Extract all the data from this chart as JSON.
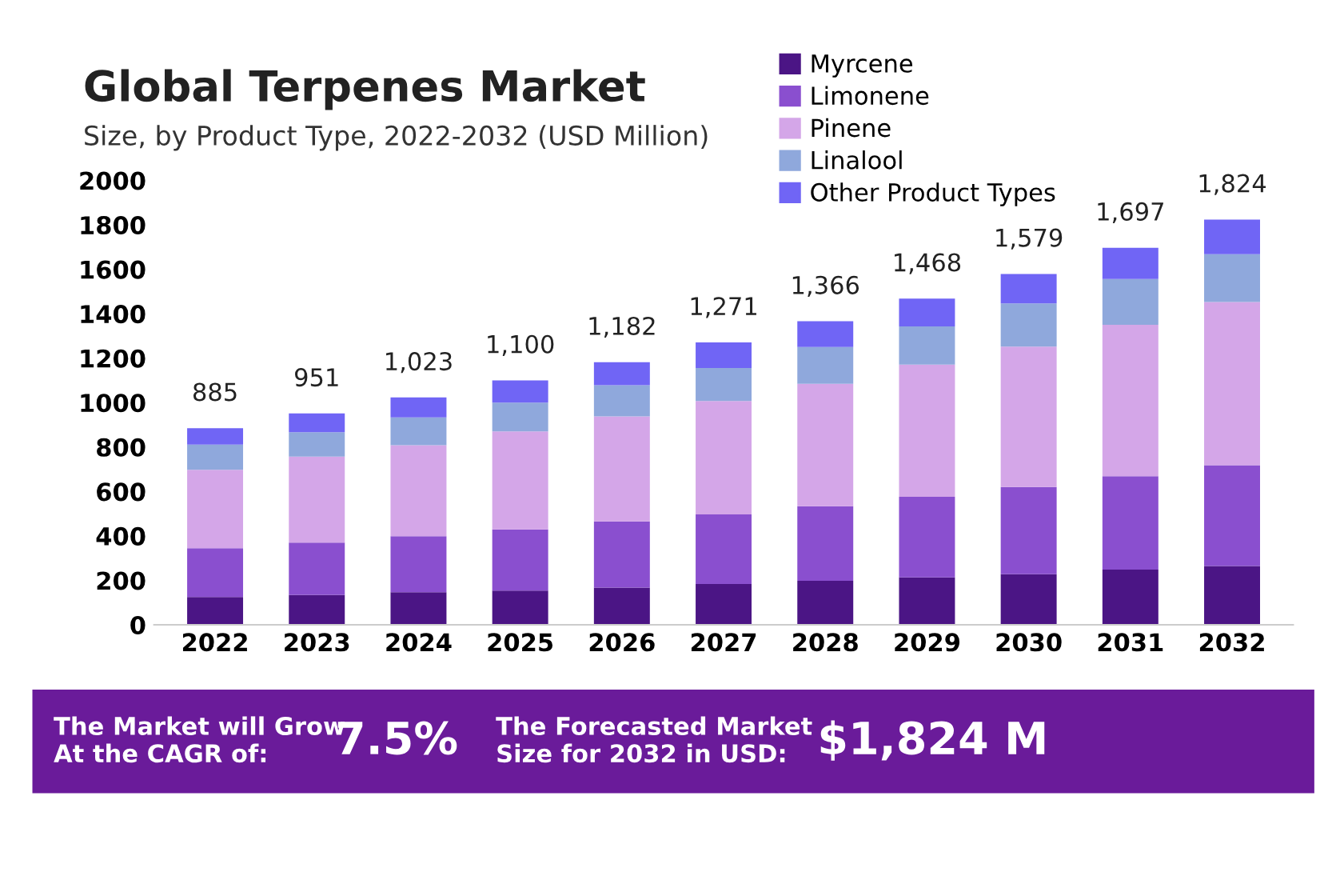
{
  "chart_data": {
    "type": "bar",
    "stacked": true,
    "title": "Global Terpenes Market",
    "subtitle": "Size, by Product Type, 2022-2032 (USD Million)",
    "categories": [
      "2022",
      "2023",
      "2024",
      "2025",
      "2026",
      "2027",
      "2028",
      "2029",
      "2030",
      "2031",
      "2032"
    ],
    "series": [
      {
        "name": "Myrcene",
        "color": "#4b1585",
        "values": [
          125,
          134,
          147,
          154,
          167,
          184,
          198,
          213,
          228,
          248,
          265
        ]
      },
      {
        "name": "Limonene",
        "color": "#8a4fcf",
        "values": [
          220,
          236,
          252,
          275,
          298,
          313,
          336,
          363,
          392,
          421,
          453
        ]
      },
      {
        "name": "Pinene",
        "color": "#d4a6e8",
        "values": [
          353,
          387,
          409,
          441,
          473,
          510,
          551,
          595,
          632,
          681,
          735
        ]
      },
      {
        "name": "Linalool",
        "color": "#8fa8dc",
        "values": [
          113,
          110,
          125,
          130,
          140,
          149,
          165,
          172,
          194,
          206,
          215
        ]
      },
      {
        "name": "Other Product Types",
        "color": "#7065f5",
        "values": [
          74,
          84,
          90,
          100,
          104,
          115,
          116,
          125,
          133,
          141,
          156
        ]
      }
    ],
    "totals": [
      "885",
      "951",
      "1,023",
      "1,100",
      "1,182",
      "1,271",
      "1,366",
      "1,468",
      "1,579",
      "1,697",
      "1,824"
    ],
    "ylim": [
      0,
      2000
    ],
    "yticks": [
      0,
      200,
      400,
      600,
      800,
      1000,
      1200,
      1400,
      1600,
      1800,
      2000
    ],
    "grid": false,
    "legend": "top right",
    "annotations": [
      "The Market will Grow\nAt the CAGR of:",
      "7.5%",
      "The Forecasted Market\nSize for 2032 in USD:",
      "$1,824 M"
    ]
  }
}
